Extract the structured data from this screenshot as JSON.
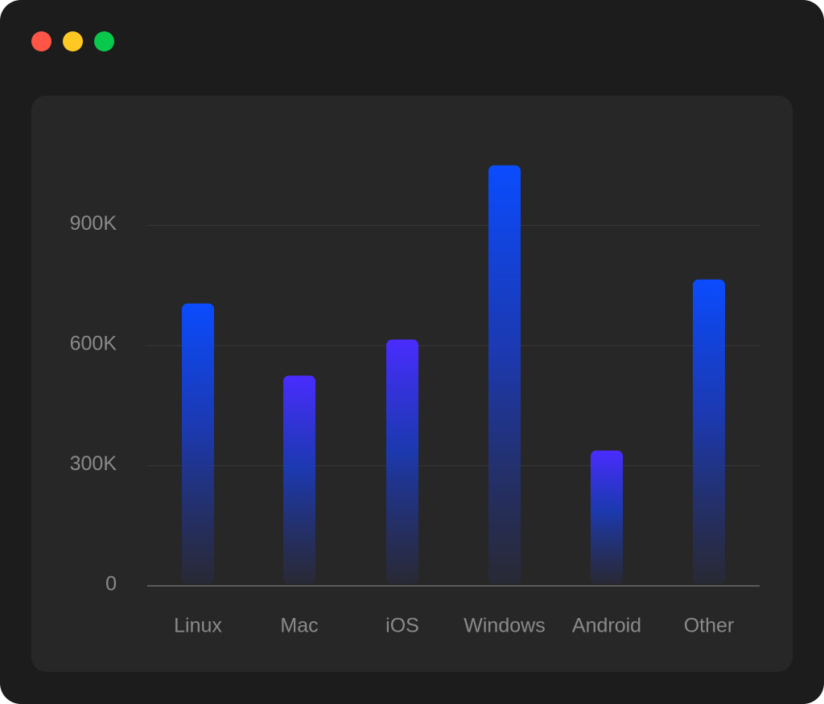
{
  "window": {
    "controls": [
      "close",
      "minimize",
      "zoom"
    ],
    "colors": {
      "background": "#1c1c1c",
      "panel": "#272727",
      "close": "#ff5547",
      "minimize": "#ffc822",
      "zoom": "#08c94b"
    }
  },
  "chart_data": {
    "type": "bar",
    "categories": [
      "Linux",
      "Mac",
      "iOS",
      "Windows",
      "Android",
      "Other"
    ],
    "values": [
      705000,
      525000,
      615000,
      1050000,
      338000,
      765000
    ],
    "ylim": [
      0,
      1100000
    ],
    "yticks": [
      0,
      300000,
      600000,
      900000
    ],
    "ytick_labels": [
      "0",
      "300K",
      "600K",
      "900K"
    ],
    "grid": true,
    "title": "",
    "xlabel": "",
    "ylabel": "",
    "bar_colors": [
      "#0a4cff",
      "#4a2cff",
      "#4a2cff",
      "#0a4cff",
      "#4a2cff",
      "#0a4cff"
    ]
  }
}
